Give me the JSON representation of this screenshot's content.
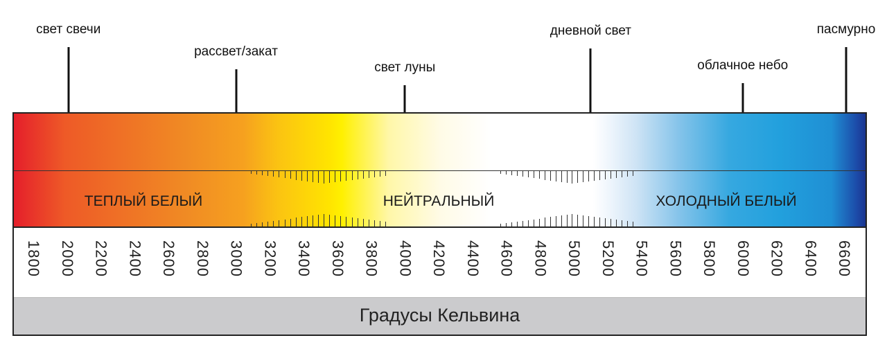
{
  "markers": [
    {
      "label": "свет свечи",
      "kelvin": 2000
    },
    {
      "label": "рассвет/закат",
      "kelvin": 3000
    },
    {
      "label": "свет луны",
      "kelvin": 4000
    },
    {
      "label": "дневной свет",
      "kelvin": 5100
    },
    {
      "label": "облачное небо",
      "kelvin": 6000
    },
    {
      "label": "пасмурно",
      "kelvin": 6600
    }
  ],
  "zones": {
    "warm": "ТЕПЛЫЙ БЕЛЫЙ",
    "neutral": "НЕЙТРАЛЬНЫЙ",
    "cool": "ХОЛОДНЫЙ БЕЛЫЙ"
  },
  "scale": [
    "1800",
    "2000",
    "2200",
    "2400",
    "2600",
    "2800",
    "3000",
    "3200",
    "3400",
    "3600",
    "3800",
    "4000",
    "4200",
    "4400",
    "4600",
    "4800",
    "5000",
    "5200",
    "5400",
    "5600",
    "5800",
    "6000",
    "6200",
    "6400",
    "6600"
  ],
  "footer": "Градусы Кельвина",
  "colors": {
    "warm": "#e51f2b",
    "yellow": "#fff000",
    "cool": "#22a0dd",
    "deep": "#1a3590",
    "footer_bg": "#cbcbcd"
  }
}
